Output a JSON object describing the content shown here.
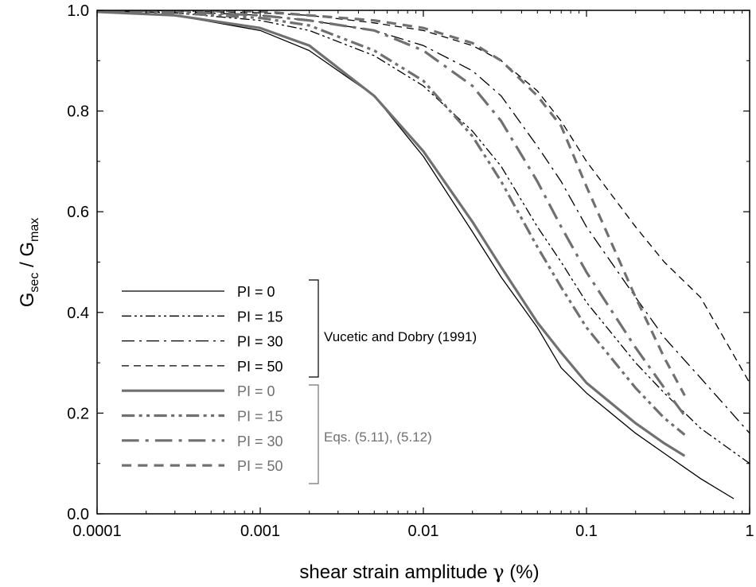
{
  "chart_data": {
    "type": "line",
    "xscale": "log",
    "xlim": [
      0.0001,
      1
    ],
    "ylim": [
      0.0,
      1.0
    ],
    "xticks": [
      0.0001,
      0.001,
      0.01,
      0.1,
      1
    ],
    "xtick_labels": [
      "0.0001",
      "0.001",
      "0.01",
      "0.1",
      "1"
    ],
    "yticks": [
      0.0,
      0.2,
      0.4,
      0.6,
      0.8,
      1.0
    ],
    "ytick_labels": [
      "0.0",
      "0.2",
      "0.4",
      "0.6",
      "0.8",
      "1.0"
    ],
    "xlabel_prefix": "shear strain amplitude ",
    "xlabel_symbol": "γ",
    "xlabel_suffix": " (%)",
    "ylabel": {
      "g1": "G",
      "s1": "sec",
      "sep": " / ",
      "g2": "G",
      "s2": "max"
    },
    "grid": false,
    "legend_position": "lower-left",
    "groups": [
      {
        "label": "Vucetic and Dobry (1991)",
        "color": "#000000"
      },
      {
        "label": "Eqs. (5.11), (5.12)",
        "color": "#707070"
      }
    ],
    "series": [
      {
        "name": "PI = 0",
        "group": 0,
        "dash": "solid",
        "width": 1.3,
        "x": [
          0.0001,
          0.0003,
          0.001,
          0.002,
          0.005,
          0.01,
          0.02,
          0.03,
          0.05,
          0.07,
          0.1,
          0.2,
          0.3,
          0.5,
          0.8
        ],
        "y": [
          1.0,
          0.99,
          0.96,
          0.92,
          0.83,
          0.71,
          0.56,
          0.47,
          0.37,
          0.29,
          0.24,
          0.16,
          0.12,
          0.07,
          0.03
        ]
      },
      {
        "name": "PI = 15",
        "group": 0,
        "dash": "dashdotdot",
        "width": 1.3,
        "x": [
          0.0001,
          0.0003,
          0.001,
          0.002,
          0.005,
          0.01,
          0.02,
          0.03,
          0.05,
          0.07,
          0.1,
          0.2,
          0.3,
          0.5,
          1.0
        ],
        "y": [
          1.0,
          0.995,
          0.98,
          0.96,
          0.91,
          0.85,
          0.76,
          0.69,
          0.57,
          0.5,
          0.42,
          0.3,
          0.24,
          0.17,
          0.1
        ]
      },
      {
        "name": "PI = 30",
        "group": 0,
        "dash": "dashdot",
        "width": 1.3,
        "x": [
          0.0001,
          0.0003,
          0.001,
          0.002,
          0.005,
          0.01,
          0.02,
          0.03,
          0.05,
          0.07,
          0.1,
          0.2,
          0.3,
          0.5,
          1.0
        ],
        "y": [
          1.0,
          0.998,
          0.99,
          0.98,
          0.96,
          0.93,
          0.88,
          0.83,
          0.73,
          0.66,
          0.57,
          0.43,
          0.35,
          0.27,
          0.16
        ]
      },
      {
        "name": "PI = 50",
        "group": 0,
        "dash": "dash",
        "width": 1.3,
        "x": [
          0.0001,
          0.0003,
          0.001,
          0.002,
          0.005,
          0.01,
          0.02,
          0.03,
          0.05,
          0.07,
          0.1,
          0.2,
          0.3,
          0.5,
          1.0
        ],
        "y": [
          1.0,
          0.999,
          0.995,
          0.99,
          0.975,
          0.96,
          0.93,
          0.9,
          0.84,
          0.78,
          0.7,
          0.57,
          0.5,
          0.43,
          0.26
        ]
      },
      {
        "name": "PI = 0",
        "group": 1,
        "dash": "solid",
        "width": 3.2,
        "x": [
          0.0001,
          0.0003,
          0.001,
          0.002,
          0.005,
          0.01,
          0.02,
          0.03,
          0.05,
          0.07,
          0.1,
          0.2,
          0.3,
          0.4
        ],
        "y": [
          0.997,
          0.99,
          0.965,
          0.93,
          0.83,
          0.72,
          0.58,
          0.49,
          0.38,
          0.32,
          0.26,
          0.18,
          0.14,
          0.115
        ]
      },
      {
        "name": "PI = 15",
        "group": 1,
        "dash": "dashdotdot",
        "width": 3.2,
        "x": [
          0.0001,
          0.0003,
          0.001,
          0.002,
          0.005,
          0.01,
          0.02,
          0.03,
          0.05,
          0.07,
          0.1,
          0.2,
          0.3,
          0.4
        ],
        "y": [
          0.998,
          0.995,
          0.985,
          0.97,
          0.92,
          0.86,
          0.75,
          0.66,
          0.53,
          0.45,
          0.37,
          0.25,
          0.19,
          0.157
        ]
      },
      {
        "name": "PI = 30",
        "group": 1,
        "dash": "dashdot",
        "width": 3.2,
        "x": [
          0.0001,
          0.0003,
          0.001,
          0.002,
          0.005,
          0.01,
          0.02,
          0.03,
          0.05,
          0.07,
          0.1,
          0.2,
          0.3,
          0.4
        ],
        "y": [
          1.0,
          0.998,
          0.99,
          0.98,
          0.96,
          0.92,
          0.85,
          0.78,
          0.66,
          0.57,
          0.48,
          0.33,
          0.25,
          0.195
        ]
      },
      {
        "name": "PI = 50",
        "group": 1,
        "dash": "dash",
        "width": 3.2,
        "x": [
          0.0001,
          0.0003,
          0.001,
          0.002,
          0.005,
          0.01,
          0.02,
          0.03,
          0.05,
          0.07,
          0.1,
          0.2,
          0.3,
          0.4
        ],
        "y": [
          1.0,
          1.0,
          0.998,
          0.99,
          0.98,
          0.965,
          0.935,
          0.9,
          0.83,
          0.77,
          0.65,
          0.43,
          0.31,
          0.235
        ]
      }
    ]
  }
}
